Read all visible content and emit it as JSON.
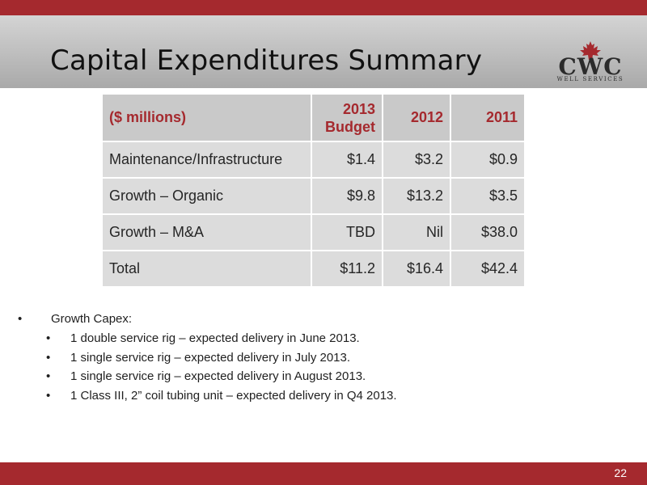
{
  "slide": {
    "title": "Capital Expenditures Summary",
    "page_number": "22"
  },
  "logo": {
    "name": "CWC",
    "tagline": "WELL SERVICES",
    "icon": "maple-leaf-icon"
  },
  "colors": {
    "accent": "#a5292e",
    "title_band": "#bdbdbd",
    "table_header": "#c9c9c9",
    "table_body": "#dcdcdc"
  },
  "table": {
    "header": [
      "($ millions)",
      "2013 Budget",
      "2012",
      "2011"
    ],
    "rows": [
      [
        "Maintenance/Infrastructure",
        "$1.4",
        "$3.2",
        "$0.9"
      ],
      [
        "Growth – Organic",
        "$9.8",
        "$13.2",
        "$3.5"
      ],
      [
        "Growth – M&A",
        "TBD",
        "Nil",
        "$38.0"
      ],
      [
        "Total",
        "$11.2",
        "$16.4",
        "$42.4"
      ]
    ]
  },
  "bullets": {
    "bullet_char": "•",
    "main": "Growth Capex:",
    "items": [
      "1 double service rig – expected delivery in June 2013.",
      "1 single service rig – expected delivery in July 2013.",
      "1 single service rig – expected delivery in August 2013.",
      "1 Class III, 2” coil tubing unit – expected delivery in Q4 2013."
    ]
  }
}
